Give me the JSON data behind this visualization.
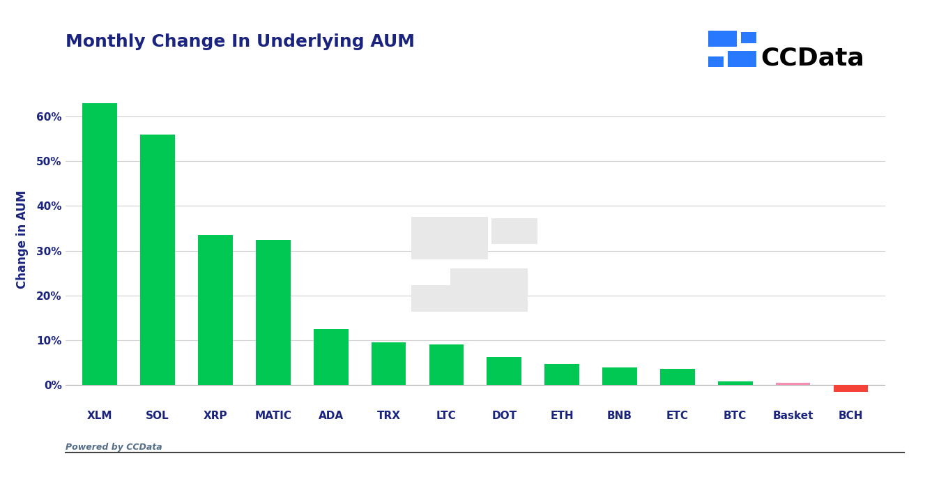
{
  "title": "Monthly Change In Underlying AUM",
  "ylabel": "Change in AUM",
  "categories": [
    "XLM",
    "SOL",
    "XRP",
    "MATIC",
    "ADA",
    "TRX",
    "LTC",
    "DOT",
    "ETH",
    "BNB",
    "ETC",
    "BTC",
    "Basket",
    "BCH"
  ],
  "values": [
    63.0,
    56.0,
    33.5,
    32.5,
    12.5,
    9.5,
    9.0,
    6.2,
    4.6,
    3.9,
    3.5,
    0.8,
    0.4,
    -1.5
  ],
  "bar_colors": [
    "#00C853",
    "#00C853",
    "#00C853",
    "#00C853",
    "#00C853",
    "#00C853",
    "#00C853",
    "#00C853",
    "#00C853",
    "#00C853",
    "#00C853",
    "#00C853",
    "#F48FB1",
    "#F44336"
  ],
  "background_color": "#ffffff",
  "title_color": "#1a237e",
  "ylabel_color": "#1a237e",
  "tick_color": "#1a237e",
  "grid_color": "#d0d0d0",
  "ylim": [
    -5,
    70
  ],
  "yticks": [
    0,
    10,
    20,
    30,
    40,
    50,
    60
  ],
  "ytick_labels": [
    "0%",
    "10%",
    "20%",
    "30%",
    "40%",
    "50%",
    "60%"
  ],
  "footer_text": "Powered by CCData",
  "ccdata_text": "CCData",
  "logo_blue_dark": "#2979FF",
  "logo_text_color": "#000000",
  "footer_color": "#546e8a",
  "footer_line_color": "#444444"
}
